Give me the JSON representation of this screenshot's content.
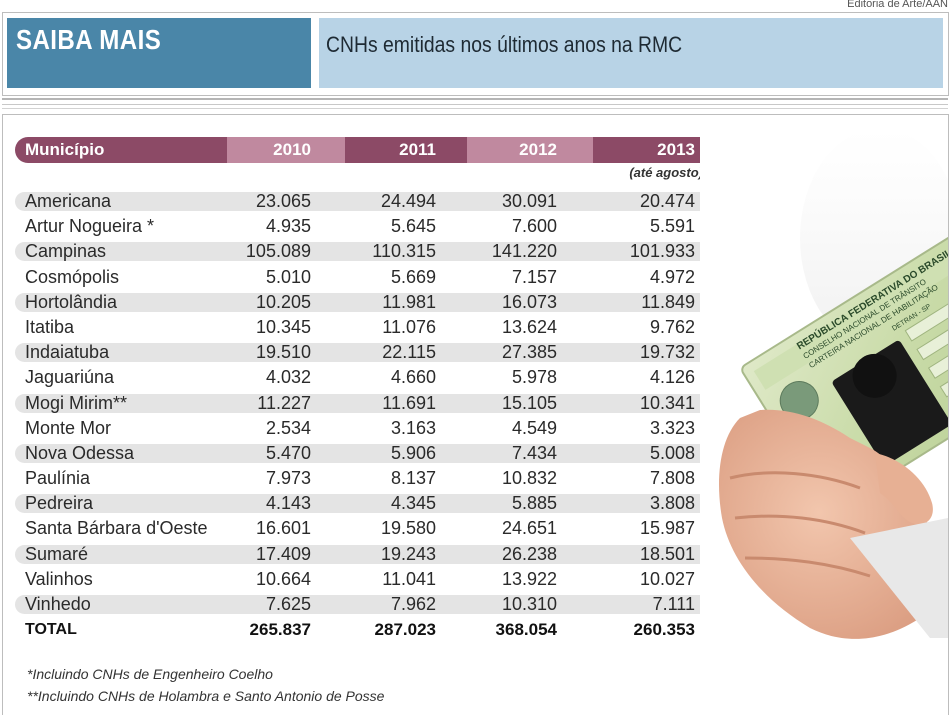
{
  "credit": "Editoria de Arte/AAN",
  "header": {
    "badge": "SAIBA MAIS",
    "title": "CNHs emitidas nos últimos anos na RMC"
  },
  "table": {
    "columns": [
      "Município",
      "2010",
      "2011",
      "2012",
      "2013"
    ],
    "note_2013": "(até agosto)",
    "rows": [
      [
        "Americana",
        "23.065",
        "24.494",
        "30.091",
        "20.474"
      ],
      [
        "Artur Nogueira *",
        "4.935",
        "5.645",
        "7.600",
        "5.591"
      ],
      [
        "Campinas",
        "105.089",
        "110.315",
        "141.220",
        "101.933"
      ],
      [
        "Cosmópolis",
        "5.010",
        "5.669",
        "7.157",
        "4.972"
      ],
      [
        "Hortolândia",
        "10.205",
        "11.981",
        "16.073",
        "11.849"
      ],
      [
        "Itatiba",
        "10.345",
        "11.076",
        "13.624",
        "9.762"
      ],
      [
        "Indaiatuba",
        "19.510",
        "22.115",
        "27.385",
        "19.732"
      ],
      [
        "Jaguariúna",
        "4.032",
        "4.660",
        "5.978",
        "4.126"
      ],
      [
        "Mogi Mirim**",
        "11.227",
        "11.691",
        "15.105",
        "10.341"
      ],
      [
        "Monte Mor",
        "2.534",
        "3.163",
        "4.549",
        "3.323"
      ],
      [
        "Nova Odessa",
        "5.470",
        "5.906",
        "7.434",
        "5.008"
      ],
      [
        "Paulínia",
        "7.973",
        "8.137",
        "10.832",
        "7.808"
      ],
      [
        "Pedreira",
        "4.143",
        "4.345",
        "5.885",
        "3.808"
      ],
      [
        "Santa Bárbara d'Oeste",
        "16.601",
        "19.580",
        "24.651",
        "15.987"
      ],
      [
        "Sumaré",
        "17.409",
        "19.243",
        "26.238",
        "18.501"
      ],
      [
        "Valinhos",
        "10.664",
        "11.041",
        "13.922",
        "10.027"
      ],
      [
        "Vinhedo",
        "7.625",
        "7.962",
        "10.310",
        "7.111"
      ],
      [
        "TOTAL",
        "265.837",
        "287.023",
        "368.054",
        "260.353"
      ]
    ]
  },
  "footnotes": [
    "*Incluindo CNHs de Engenheiro Coelho",
    "**Incluindo CNHs de Holambra e Santo Antonio de Posse"
  ],
  "photo": {
    "description_icon": "hand-holding-license-icon",
    "card_lines": [
      "REPÚBLICA FEDERATIVA DO BRASIL",
      "CONSELHO NACIONAL DE TRÂNSITO",
      "CARTEIRA NACIONAL DE HABILITAÇÃO",
      "DETRAN - SP"
    ]
  },
  "colors": {
    "badge": "#4a86a8",
    "title_bg": "#b8d3e6",
    "header_dark": "#8c4a66",
    "header_light": "#c0899f",
    "row_stripe": "#e4e4e4"
  }
}
